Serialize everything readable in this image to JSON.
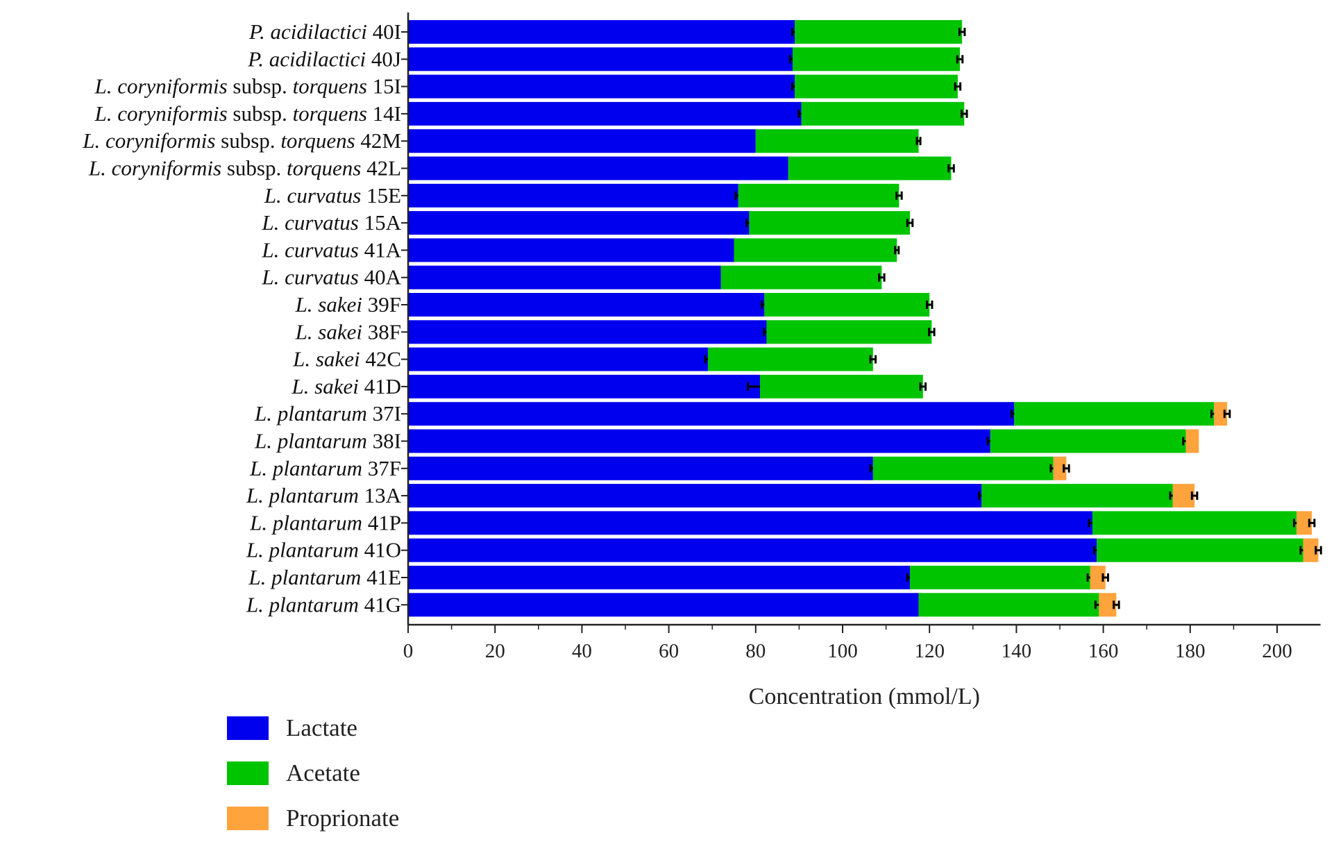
{
  "chart_data": {
    "type": "bar",
    "orientation": "horizontal",
    "stacked": true,
    "xlabel": "Concentration (mmol/L)",
    "xlim": [
      0,
      210
    ],
    "xticks": [
      0,
      20,
      40,
      60,
      80,
      100,
      120,
      140,
      160,
      180,
      200
    ],
    "grid": false,
    "legend_position": "bottom-left",
    "categories": [
      {
        "label": [
          {
            "t": "P. acidilactici",
            "i": true
          },
          {
            "t": " 40I",
            "i": false
          }
        ]
      },
      {
        "label": [
          {
            "t": "P. acidilactici",
            "i": true
          },
          {
            "t": " 40J",
            "i": false
          }
        ]
      },
      {
        "label": [
          {
            "t": "L. coryniformis",
            "i": true
          },
          {
            "t": " subsp. ",
            "i": false
          },
          {
            "t": "torquens",
            "i": true
          },
          {
            "t": " 15I",
            "i": false
          }
        ]
      },
      {
        "label": [
          {
            "t": "L. coryniformis",
            "i": true
          },
          {
            "t": " subsp. ",
            "i": false
          },
          {
            "t": "torquens",
            "i": true
          },
          {
            "t": " 14I",
            "i": false
          }
        ]
      },
      {
        "label": [
          {
            "t": "L. coryniformis",
            "i": true
          },
          {
            "t": " subsp. ",
            "i": false
          },
          {
            "t": "torquens",
            "i": true
          },
          {
            "t": " 42M",
            "i": false
          }
        ]
      },
      {
        "label": [
          {
            "t": "L. coryniformis",
            "i": true
          },
          {
            "t": " subsp. ",
            "i": false
          },
          {
            "t": "torquens",
            "i": true
          },
          {
            "t": " 42L",
            "i": false
          }
        ]
      },
      {
        "label": [
          {
            "t": "L. curvatus",
            "i": true
          },
          {
            "t": " 15E",
            "i": false
          }
        ]
      },
      {
        "label": [
          {
            "t": "L. curvatus",
            "i": true
          },
          {
            "t": " 15A",
            "i": false
          }
        ]
      },
      {
        "label": [
          {
            "t": "L. curvatus",
            "i": true
          },
          {
            "t": " 41A",
            "i": false
          }
        ]
      },
      {
        "label": [
          {
            "t": "L. curvatus",
            "i": true
          },
          {
            "t": " 40A",
            "i": false
          }
        ]
      },
      {
        "label": [
          {
            "t": "L. sakei",
            "i": true
          },
          {
            "t": " 39F",
            "i": false
          }
        ]
      },
      {
        "label": [
          {
            "t": "L. sakei",
            "i": true
          },
          {
            "t": " 38F",
            "i": false
          }
        ]
      },
      {
        "label": [
          {
            "t": "L. sakei",
            "i": true
          },
          {
            "t": " 42C",
            "i": false
          }
        ]
      },
      {
        "label": [
          {
            "t": "L. sakei",
            "i": true
          },
          {
            "t": " 41D",
            "i": false
          }
        ]
      },
      {
        "label": [
          {
            "t": "L. plantarum",
            "i": true
          },
          {
            "t": " 37I",
            "i": false
          }
        ]
      },
      {
        "label": [
          {
            "t": "L. plantarum",
            "i": true
          },
          {
            "t": " 38I",
            "i": false
          }
        ]
      },
      {
        "label": [
          {
            "t": "L. plantarum",
            "i": true
          },
          {
            "t": " 37F",
            "i": false
          }
        ]
      },
      {
        "label": [
          {
            "t": "L. plantarum",
            "i": true
          },
          {
            "t": " 13A",
            "i": false
          }
        ]
      },
      {
        "label": [
          {
            "t": "L. plantarum",
            "i": true
          },
          {
            "t": " 41P",
            "i": false
          }
        ]
      },
      {
        "label": [
          {
            "t": "L. plantarum",
            "i": true
          },
          {
            "t": " 41O",
            "i": false
          }
        ]
      },
      {
        "label": [
          {
            "t": "L. plantarum",
            "i": true
          },
          {
            "t": " 41E",
            "i": false
          }
        ]
      },
      {
        "label": [
          {
            "t": "L. plantarum",
            "i": true
          },
          {
            "t": " 41G",
            "i": false
          }
        ]
      }
    ],
    "series": [
      {
        "name": "Lactate",
        "color": "#0000ee",
        "values": [
          89,
          88.5,
          89,
          90.5,
          80,
          87.5,
          76,
          78.5,
          75,
          72,
          82,
          82.5,
          69,
          81,
          139.5,
          134,
          107,
          132,
          157.5,
          158.5,
          115.5,
          117.5
        ],
        "errors": [
          0.6,
          0.6,
          0.6,
          0.6,
          0,
          0,
          0.6,
          0.6,
          0,
          0,
          0.6,
          0.6,
          0.6,
          2.8,
          0.6,
          0.6,
          0.6,
          0.6,
          0.8,
          0.6,
          0.6,
          0
        ]
      },
      {
        "name": "Acetate",
        "color": "#00c400",
        "values": [
          38.5,
          38.5,
          37.5,
          37.5,
          37.5,
          37.5,
          37,
          37,
          37.5,
          37,
          38,
          38,
          38,
          37.5,
          46,
          45,
          41.5,
          44,
          47,
          47.5,
          41.5,
          41.5
        ],
        "errors": [
          0.6,
          0.6,
          0.6,
          0.6,
          0.4,
          0.6,
          0.6,
          0.6,
          0.4,
          0.6,
          0.6,
          0.6,
          0.6,
          0.6,
          0.6,
          0.6,
          0.6,
          0.6,
          0.6,
          0.6,
          0.6,
          0.8
        ]
      },
      {
        "name": "Proprionate",
        "color": "#ffa33d",
        "values": [
          0,
          0,
          0,
          0,
          0,
          0,
          0,
          0,
          0,
          0,
          0,
          0,
          0,
          0,
          3,
          3,
          3,
          5,
          3.5,
          3.5,
          3.5,
          4
        ],
        "errors": [
          0,
          0,
          0,
          0,
          0,
          0,
          0,
          0,
          0,
          0,
          0,
          0,
          0,
          0,
          0.6,
          0,
          0.6,
          0.6,
          0.6,
          0.6,
          0.6,
          0.6
        ]
      }
    ]
  }
}
